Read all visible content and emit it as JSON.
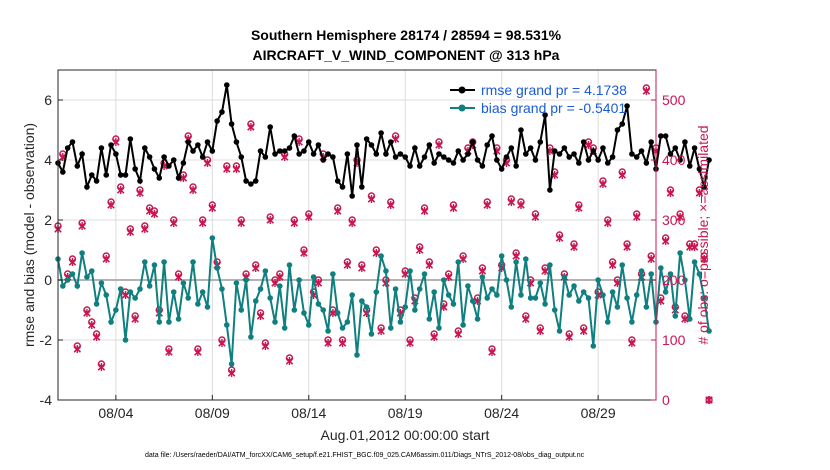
{
  "chart_data": {
    "type": "line",
    "title": "Southern Hemisphere 28174 / 28594 = 98.531%",
    "subtitle": "AIRCRAFT_V_WIND_COMPONENT @ 313 hPa",
    "xlabel": "Aug.01,2012 00:00:00 start",
    "ylabel": "rmse and bias (model - observation)",
    "y2label": "# of obs: o=possible; ×=assimilated",
    "footer": "data file: /Users/raeder/DAI/ATM_forcXX/CAM6_setup/f.e21.FHIST_BGC.f09_025.CAM6assim.011/Diags_NTrS_2012-08/obs_diag_output.nc",
    "x_range": [
      1.0,
      32.0
    ],
    "ylim": [
      -4,
      7
    ],
    "y2lim": [
      0,
      550
    ],
    "x_ticks": [
      {
        "value": 4,
        "label": "08/04"
      },
      {
        "value": 9,
        "label": "08/09"
      },
      {
        "value": 14,
        "label": "08/14"
      },
      {
        "value": 19,
        "label": "08/19"
      },
      {
        "value": 24,
        "label": "08/24"
      },
      {
        "value": 29,
        "label": "08/29"
      }
    ],
    "y_ticks": [
      "-4",
      "-2",
      "0",
      "2",
      "4",
      "6"
    ],
    "y2_ticks": [
      "0",
      "100",
      "200",
      "300",
      "400",
      "500"
    ],
    "x_step": 0.25,
    "legend": [
      "rmse grand pr = 4.1738",
      "bias grand pr = -0.5401"
    ],
    "colors": {
      "rmse": "#000000",
      "bias": "#0f7f7f",
      "obs": "#c8174f",
      "zero": "#b3b3b3"
    },
    "series": [
      {
        "name": "rmse",
        "values": [
          3.9,
          3.6,
          4.4,
          4.6,
          3.8,
          4.2,
          3.1,
          3.5,
          3.3,
          4.4,
          3.5,
          4.5,
          4.2,
          3.5,
          3.5,
          4.7,
          3.7,
          3.3,
          4.4,
          4.1,
          3.7,
          3.4,
          4.1,
          3.8,
          4.0,
          3.4,
          3.9,
          4.6,
          4.3,
          4.5,
          4.1,
          4.6,
          4.3,
          5.3,
          5.6,
          6.5,
          5.2,
          4.6,
          4.1,
          3.3,
          3.2,
          3.3,
          4.3,
          4.1,
          5.1,
          4.2,
          4.3,
          4.3,
          4.4,
          4.8,
          4.2,
          4.3,
          4.6,
          4.2,
          4.5,
          4.0,
          4.2,
          4.1,
          3.3,
          3.1,
          4.2,
          2.8,
          4.5,
          3.1,
          4.7,
          4.5,
          4.2,
          4.9,
          4.2,
          4.6,
          4.1,
          4.2,
          4.1,
          3.8,
          4.4,
          3.8,
          4.1,
          4.5,
          3.9,
          4.2,
          4.1,
          4.0,
          3.9,
          4.3,
          4.0,
          4.2,
          4.6,
          4.0,
          3.8,
          4.5,
          4.8,
          4.0,
          3.7,
          4.1,
          4.4,
          3.8,
          5.0,
          4.2,
          4.4,
          4.0,
          4.6,
          5.5,
          3.0,
          4.3,
          4.2,
          4.4,
          4.1,
          4.2,
          3.9,
          4.6,
          4.0,
          4.3,
          4.0,
          4.4,
          3.9,
          4.1,
          5.0,
          5.2,
          5.8,
          4.2,
          4.1,
          4.3,
          3.9,
          4.6,
          3.7,
          4.8,
          4.8,
          4.2,
          4.4,
          4.0,
          4.6,
          3.8,
          4.4,
          3.7,
          3.1,
          4.0
        ]
      },
      {
        "name": "bias",
        "values": [
          0.7,
          -0.2,
          0.0,
          0.2,
          -0.2,
          0.9,
          0.1,
          0.3,
          -0.8,
          -0.1,
          -0.5,
          -1.4,
          -1.0,
          -0.3,
          -2.0,
          -0.4,
          -0.6,
          -0.3,
          0.6,
          -0.2,
          0.5,
          -1.4,
          0.6,
          -1.4,
          -0.4,
          -1.3,
          -0.1,
          -0.6,
          0.6,
          -0.8,
          -0.4,
          -0.9,
          1.4,
          0.4,
          -0.3,
          -1.5,
          -2.8,
          -0.1,
          -1.0,
          0.0,
          -1.9,
          -0.7,
          -0.3,
          0.3,
          -0.6,
          -1.4,
          -0.2,
          -1.6,
          0.5,
          -1.0,
          0.0,
          -1.1,
          -1.5,
          0.1,
          -0.8,
          -1.0,
          -1.7,
          0.2,
          -1.1,
          -1.6,
          -1.4,
          -0.5,
          -2.5,
          -0.7,
          -0.9,
          -1.8,
          -0.4,
          0.8,
          0.3,
          -1.6,
          -0.3,
          -1.4,
          -0.9,
          0.3,
          -1.0,
          -0.3,
          0.2,
          -1.3,
          -0.4,
          -1.6,
          0.0,
          -0.5,
          -0.8,
          0.6,
          -1.5,
          -0.2,
          -0.7,
          -1.3,
          0.1,
          -0.6,
          -0.3,
          -0.5,
          0.8,
          0.0,
          -0.9,
          0.6,
          -0.5,
          0.7,
          -0.6,
          -0.6,
          -0.1,
          -0.8,
          0.5,
          -1.0,
          -1.7,
          0.1,
          -0.5,
          -0.2,
          -0.7,
          -0.4,
          -0.6,
          -2.2,
          0.0,
          -0.5,
          -1.4,
          -0.4,
          -0.9,
          0.5,
          -0.6,
          -1.4,
          -0.5,
          0.3,
          -0.9,
          0.2,
          -1.4,
          0.4,
          -0.4,
          0.2,
          -1.2,
          0.9,
          0.0,
          -1.3,
          0.6,
          0.2,
          -0.6,
          -1.7
        ]
      },
      {
        "name": "obs_possible",
        "values": [
          290,
          410,
          210,
          235,
          90,
          295,
          150,
          130,
          110,
          60,
          240,
          330,
          435,
          355,
          180,
          285,
          140,
          350,
          290,
          320,
          315,
          150,
          395,
          85,
          300,
          210,
          375,
          440,
          355,
          85,
          300,
          400,
          325,
          230,
          100,
          390,
          50,
          390,
          300,
          210,
          460,
          225,
          145,
          95,
          305,
          200,
          210,
          410,
          70,
          300,
          435,
          250,
          310,
          180,
          200,
          410,
          100,
          150,
          320,
          100,
          230,
          300,
          400,
          225,
          150,
          340,
          250,
          120,
          200,
          330,
          440,
          150,
          215,
          100,
          170,
          255,
          320,
          230,
          110,
          430,
          160,
          210,
          325,
          115,
          240,
          420,
          430,
          170,
          220,
          330,
          85,
          420,
          225,
          400,
          335,
          245,
          330,
          140,
          200,
          310,
          120,
          220,
          420,
          380,
          275,
          210,
          110,
          260,
          325,
          120,
          430,
          420,
          180,
          365,
          300,
          230,
          200,
          380,
          260,
          100,
          310,
          210,
          520,
          240,
          420,
          170,
          270,
          350,
          155,
          310,
          140,
          260,
          260,
          350,
          240,
          0
        ]
      },
      {
        "name": "obs_assimilated",
        "values": [
          285,
          405,
          205,
          230,
          85,
          290,
          145,
          125,
          105,
          55,
          235,
          325,
          430,
          350,
          175,
          280,
          135,
          345,
          285,
          315,
          310,
          145,
          390,
          80,
          295,
          205,
          370,
          435,
          350,
          80,
          295,
          395,
          320,
          225,
          95,
          385,
          45,
          385,
          295,
          205,
          455,
          220,
          140,
          90,
          300,
          195,
          205,
          405,
          65,
          295,
          430,
          245,
          305,
          175,
          195,
          405,
          95,
          145,
          315,
          95,
          225,
          295,
          395,
          220,
          145,
          335,
          245,
          115,
          195,
          325,
          435,
          145,
          210,
          95,
          165,
          250,
          315,
          225,
          105,
          425,
          155,
          205,
          320,
          110,
          235,
          415,
          425,
          165,
          215,
          325,
          80,
          415,
          220,
          395,
          330,
          240,
          325,
          135,
          195,
          305,
          115,
          215,
          415,
          375,
          270,
          205,
          105,
          255,
          320,
          115,
          425,
          415,
          175,
          360,
          295,
          225,
          195,
          375,
          255,
          95,
          305,
          205,
          515,
          235,
          415,
          165,
          265,
          345,
          150,
          305,
          135,
          255,
          255,
          345,
          235,
          0
        ]
      }
    ]
  }
}
